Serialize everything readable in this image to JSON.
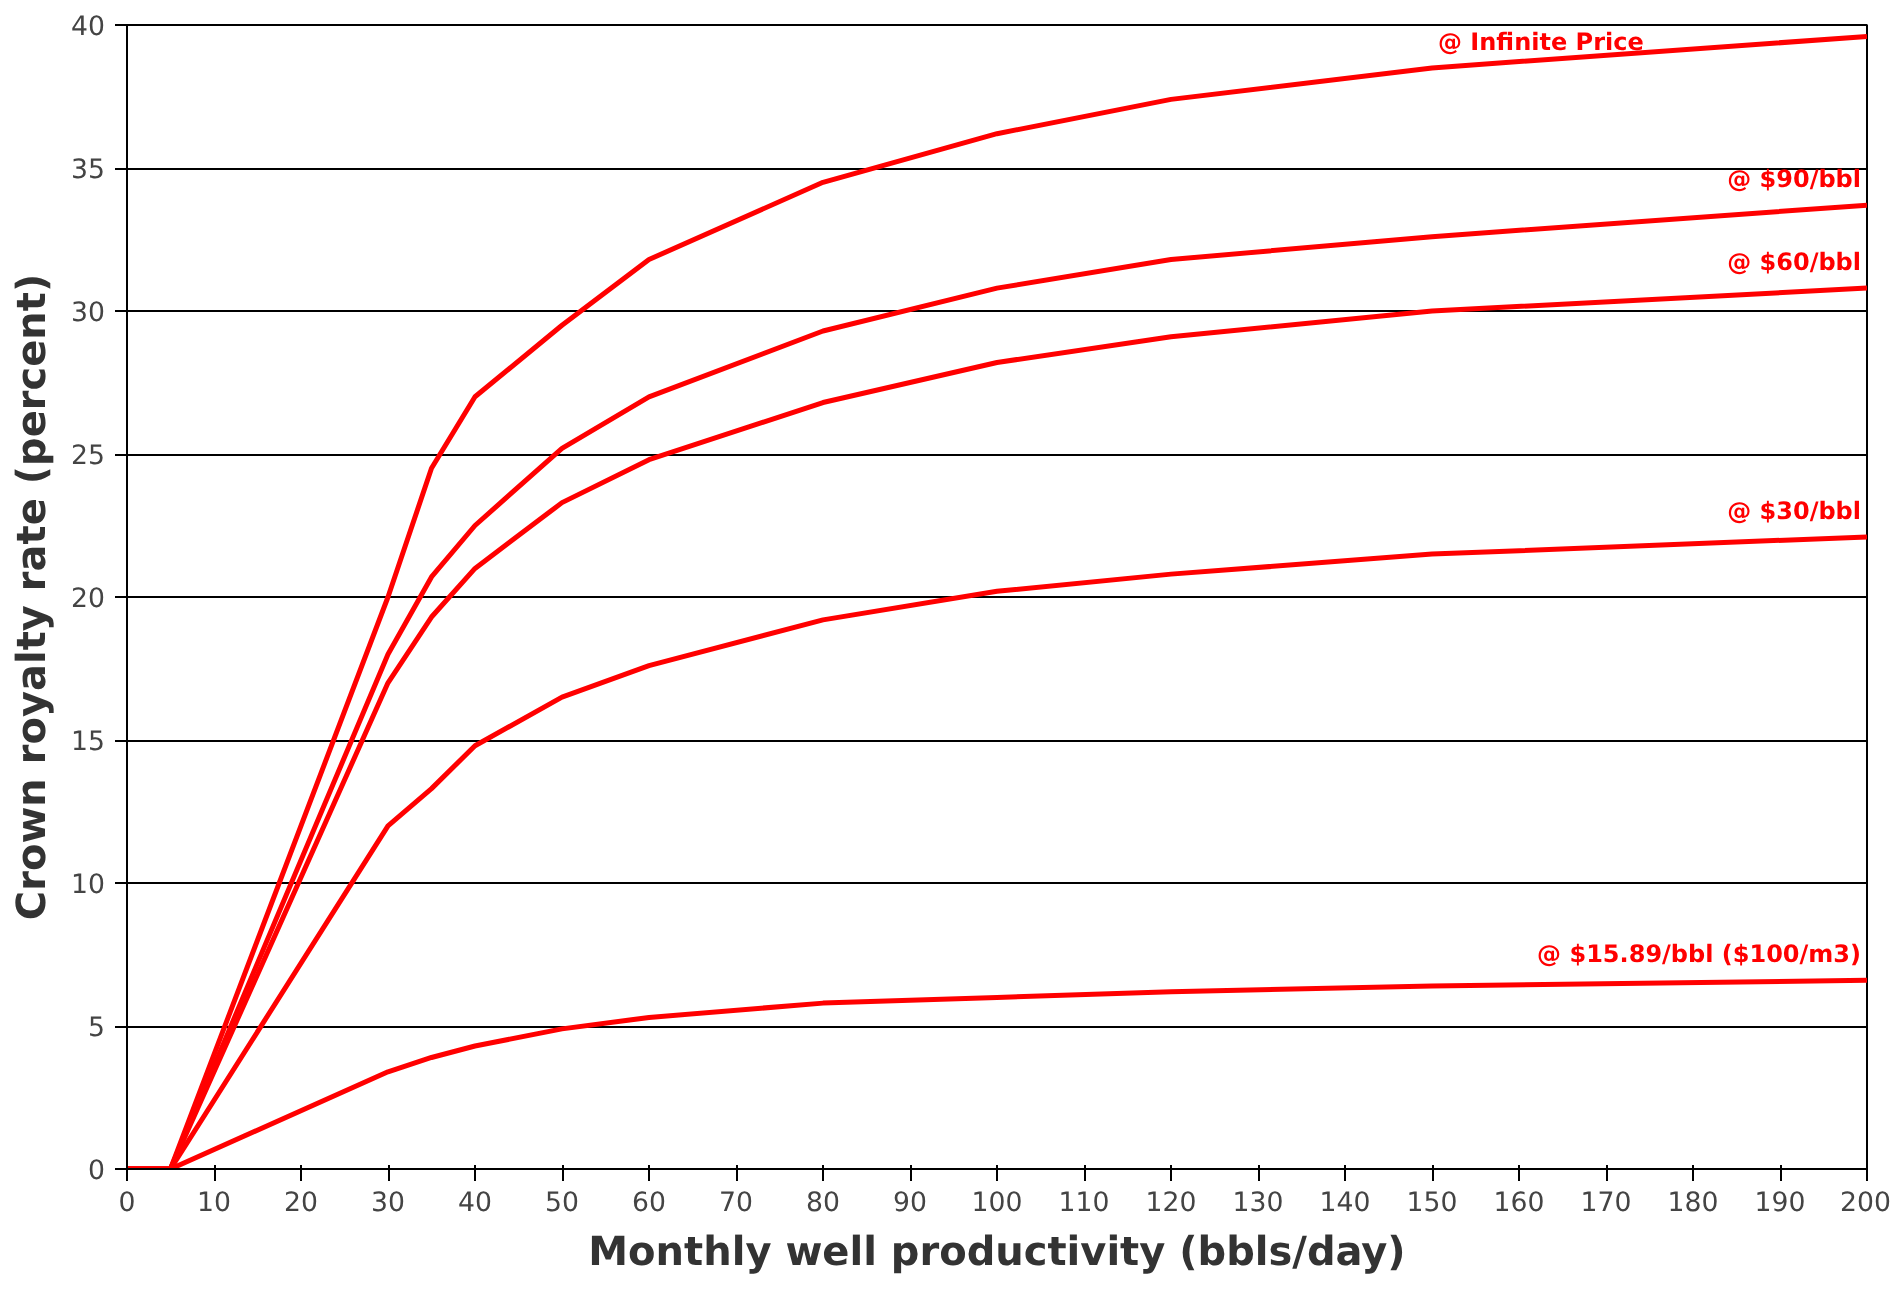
{
  "chart_data": {
    "type": "line",
    "xlabel": "Monthly well productivity (bbls/day)",
    "ylabel": "Crown royalty rate (percent)",
    "x": [
      0,
      5,
      30,
      35,
      40,
      50,
      60,
      80,
      100,
      120,
      150,
      200
    ],
    "series": [
      {
        "name": "@ Infinite Price",
        "color": "#ff0000",
        "values": [
          0,
          0,
          20,
          24.5,
          27,
          29.5,
          31.8,
          34.5,
          36.2,
          37.4,
          38.5,
          39.6
        ]
      },
      {
        "name": "@ $90/bbl",
        "color": "#ff0000",
        "values": [
          0,
          0,
          18,
          20.7,
          22.5,
          25.2,
          27,
          29.3,
          30.8,
          31.8,
          32.6,
          33.7
        ]
      },
      {
        "name": "@ $60/bbl",
        "color": "#ff0000",
        "values": [
          0,
          0,
          17,
          19.3,
          21,
          23.3,
          24.8,
          26.8,
          28.2,
          29.1,
          30,
          30.8
        ]
      },
      {
        "name": "@ $30/bbl",
        "color": "#ff0000",
        "values": [
          0,
          0,
          12,
          13.3,
          14.8,
          16.5,
          17.6,
          19.2,
          20.2,
          20.8,
          21.5,
          22.1
        ]
      },
      {
        "name": "@ $15.89/bbl ($100/m3)",
        "color": "#ff0000",
        "values": [
          0,
          0,
          3.4,
          3.9,
          4.3,
          4.9,
          5.3,
          5.8,
          6.0,
          6.2,
          6.4,
          6.6
        ]
      }
    ],
    "xlim": [
      0,
      200
    ],
    "xticks": [
      0,
      10,
      20,
      30,
      40,
      50,
      60,
      70,
      80,
      90,
      100,
      110,
      120,
      130,
      140,
      150,
      160,
      170,
      180,
      190,
      200
    ],
    "ylim": [
      0,
      40
    ],
    "yticks": [
      0,
      5,
      10,
      15,
      20,
      25,
      30,
      35,
      40
    ],
    "grid": "y",
    "marker": "none",
    "line_style": "solid"
  }
}
